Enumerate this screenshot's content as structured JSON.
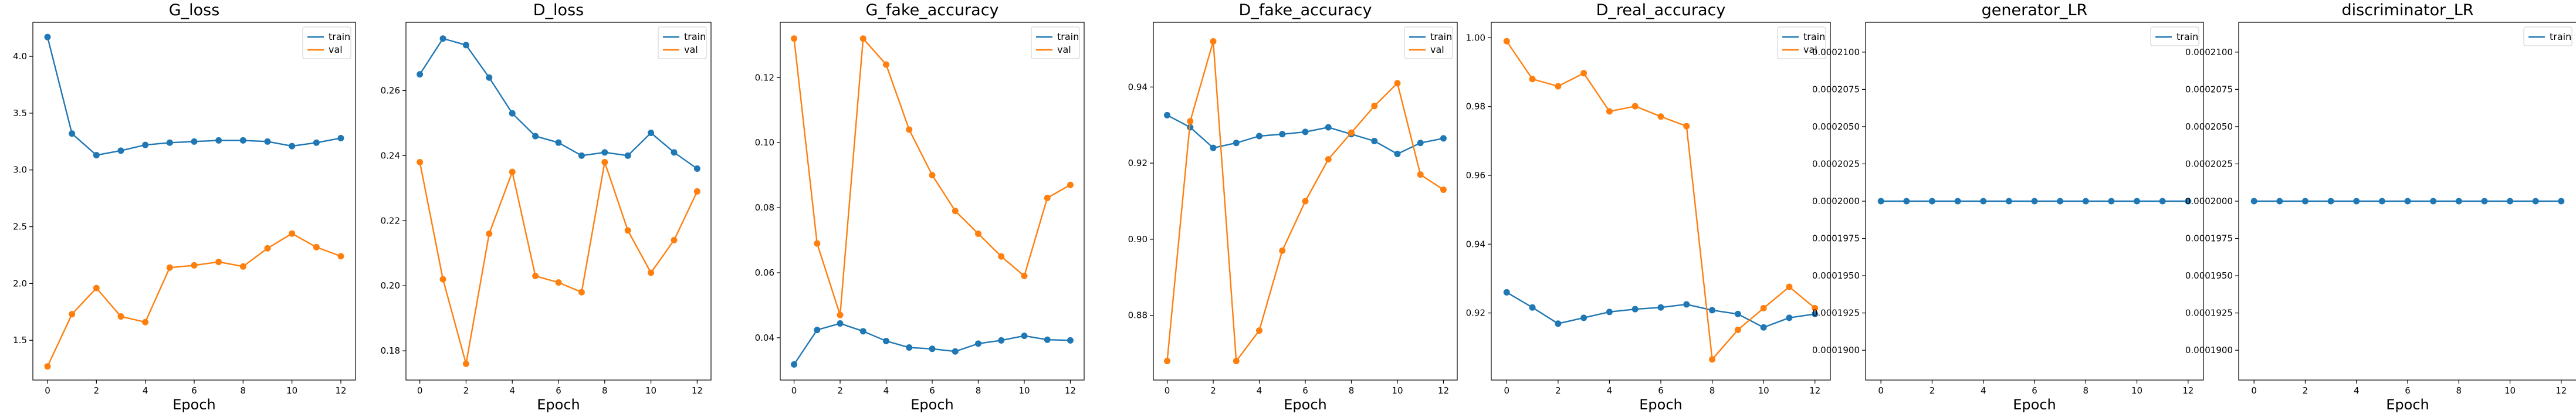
{
  "figure": {
    "x_label": "Epoch"
  },
  "colors": {
    "train": "#1f77b4",
    "val": "#ff7f0e"
  },
  "chart_data": [
    {
      "type": "line",
      "title": "G_loss",
      "xlabel": "Epoch",
      "x": [
        0,
        1,
        2,
        3,
        4,
        5,
        6,
        7,
        8,
        9,
        10,
        11,
        12
      ],
      "xticks": [
        "0",
        "2",
        "4",
        "6",
        "8",
        "10",
        "12"
      ],
      "ylim": [
        1.15,
        4.3
      ],
      "yticks": [
        "1.5",
        "2.0",
        "2.5",
        "3.0",
        "3.5",
        "4.0"
      ],
      "legend": "upper right",
      "series": [
        {
          "name": "train",
          "values": [
            4.17,
            3.32,
            3.13,
            3.17,
            3.22,
            3.24,
            3.25,
            3.26,
            3.26,
            3.25,
            3.21,
            3.24,
            3.28
          ]
        },
        {
          "name": "val",
          "values": [
            1.27,
            1.73,
            1.96,
            1.71,
            1.66,
            2.14,
            2.16,
            2.19,
            2.15,
            2.31,
            2.44,
            2.32,
            2.24
          ]
        }
      ]
    },
    {
      "type": "line",
      "title": "D_loss",
      "xlabel": "Epoch",
      "x": [
        0,
        1,
        2,
        3,
        4,
        5,
        6,
        7,
        8,
        9,
        10,
        11,
        12
      ],
      "xticks": [
        "0",
        "2",
        "4",
        "6",
        "8",
        "10",
        "12"
      ],
      "ylim": [
        0.171,
        0.281
      ],
      "yticks": [
        "0.18",
        "0.20",
        "0.22",
        "0.24",
        "0.26"
      ],
      "legend": "upper right",
      "series": [
        {
          "name": "train",
          "values": [
            0.265,
            0.276,
            0.274,
            0.264,
            0.253,
            0.246,
            0.244,
            0.24,
            0.241,
            0.24,
            0.247,
            0.241,
            0.236
          ]
        },
        {
          "name": "val",
          "values": [
            0.238,
            0.202,
            0.176,
            0.216,
            0.235,
            0.203,
            0.201,
            0.198,
            0.238,
            0.217,
            0.204,
            0.214,
            0.229
          ]
        }
      ]
    },
    {
      "type": "line",
      "title": "G_fake_accuracy",
      "xlabel": "Epoch",
      "x": [
        0,
        1,
        2,
        3,
        4,
        5,
        6,
        7,
        8,
        9,
        10,
        11,
        12
      ],
      "xticks": [
        "0",
        "2",
        "4",
        "6",
        "8",
        "10",
        "12"
      ],
      "ylim": [
        0.027,
        0.137
      ],
      "yticks": [
        "0.04",
        "0.06",
        "0.08",
        "0.10",
        "0.12"
      ],
      "legend": "upper right",
      "series": [
        {
          "name": "train",
          "values": [
            0.0318,
            0.0424,
            0.0444,
            0.042,
            0.039,
            0.037,
            0.0366,
            0.0358,
            0.0382,
            0.0392,
            0.0406,
            0.0394,
            0.0392
          ]
        },
        {
          "name": "val",
          "values": [
            0.132,
            0.069,
            0.047,
            0.132,
            0.124,
            0.104,
            0.09,
            0.079,
            0.072,
            0.065,
            0.059,
            0.083,
            0.087
          ]
        }
      ]
    },
    {
      "type": "line",
      "title": "D_fake_accuracy",
      "xlabel": "Epoch",
      "x": [
        0,
        1,
        2,
        3,
        4,
        5,
        6,
        7,
        8,
        9,
        10,
        11,
        12
      ],
      "xticks": [
        "0",
        "2",
        "4",
        "6",
        "8",
        "10",
        "12"
      ],
      "ylim": [
        0.863,
        0.957
      ],
      "yticks": [
        "0.88",
        "0.90",
        "0.92",
        "0.94"
      ],
      "legend": "upper right",
      "series": [
        {
          "name": "train",
          "values": [
            0.9326,
            0.9294,
            0.924,
            0.9253,
            0.9271,
            0.9276,
            0.9282,
            0.9294,
            0.9276,
            0.9258,
            0.9224,
            0.9253,
            0.9265
          ]
        },
        {
          "name": "val",
          "values": [
            0.868,
            0.931,
            0.952,
            0.868,
            0.876,
            0.897,
            0.91,
            0.921,
            0.928,
            0.935,
            0.941,
            0.917,
            0.913
          ]
        }
      ]
    },
    {
      "type": "line",
      "title": "D_real_accuracy",
      "xlabel": "Epoch",
      "x": [
        0,
        1,
        2,
        3,
        4,
        5,
        6,
        7,
        8,
        9,
        10,
        11,
        12
      ],
      "xticks": [
        "0",
        "2",
        "4",
        "6",
        "8",
        "10",
        "12"
      ],
      "ylim": [
        0.9005,
        1.0045
      ],
      "yticks": [
        "0.92",
        "0.94",
        "0.96",
        "0.98",
        "1.00"
      ],
      "legend": "upper right",
      "series": [
        {
          "name": "train",
          "values": [
            0.926,
            0.9216,
            0.9169,
            0.9186,
            0.9203,
            0.9211,
            0.9216,
            0.9225,
            0.9208,
            0.9197,
            0.9158,
            0.9186,
            0.9197
          ]
        },
        {
          "name": "val",
          "values": [
            0.999,
            0.988,
            0.9859,
            0.9897,
            0.9786,
            0.9801,
            0.9771,
            0.9743,
            0.9065,
            0.9151,
            0.9214,
            0.9276,
            0.9214
          ]
        }
      ]
    },
    {
      "type": "line",
      "title": "generator_LR",
      "xlabel": "Epoch",
      "x": [
        0,
        1,
        2,
        3,
        4,
        5,
        6,
        7,
        8,
        9,
        10,
        11,
        12
      ],
      "xticks": [
        "0",
        "2",
        "4",
        "6",
        "8",
        "10",
        "12"
      ],
      "ylim": [
        0.000188,
        0.000212
      ],
      "yticks": [
        "0.0001900",
        "0.0001925",
        "0.0001950",
        "0.0001975",
        "0.0002000",
        "0.0002025",
        "0.0002050",
        "0.0002075",
        "0.0002100"
      ],
      "legend": "upper right",
      "series": [
        {
          "name": "train",
          "values": [
            0.0002,
            0.0002,
            0.0002,
            0.0002,
            0.0002,
            0.0002,
            0.0002,
            0.0002,
            0.0002,
            0.0002,
            0.0002,
            0.0002,
            0.0002
          ]
        }
      ]
    },
    {
      "type": "line",
      "title": "discriminator_LR",
      "xlabel": "Epoch",
      "x": [
        0,
        1,
        2,
        3,
        4,
        5,
        6,
        7,
        8,
        9,
        10,
        11,
        12
      ],
      "xticks": [
        "0",
        "2",
        "4",
        "6",
        "8",
        "10",
        "12"
      ],
      "ylim": [
        0.000188,
        0.000212
      ],
      "yticks": [
        "0.0001900",
        "0.0001925",
        "0.0001950",
        "0.0001975",
        "0.0002000",
        "0.0002025",
        "0.0002050",
        "0.0002075",
        "0.0002100"
      ],
      "legend": "upper right",
      "series": [
        {
          "name": "train",
          "values": [
            0.0002,
            0.0002,
            0.0002,
            0.0002,
            0.0002,
            0.0002,
            0.0002,
            0.0002,
            0.0002,
            0.0002,
            0.0002,
            0.0002,
            0.0002
          ]
        }
      ]
    }
  ]
}
